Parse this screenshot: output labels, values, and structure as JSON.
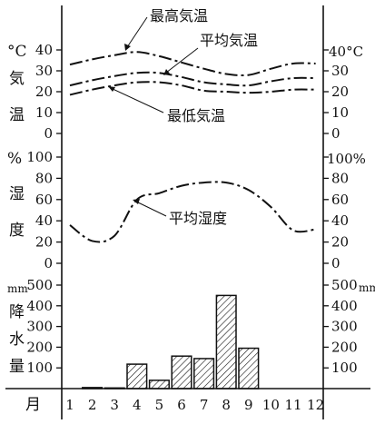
{
  "chart_data": {
    "type": "line",
    "months": [
      "1",
      "2",
      "3",
      "4",
      "5",
      "6",
      "7",
      "8",
      "9",
      "10",
      "11",
      "12"
    ],
    "x_axis_title": "月",
    "temperature_panel": {
      "unit_left": "°C",
      "unit_right": "40°C",
      "side_label_chars": [
        "気",
        "温"
      ],
      "ylim": [
        0,
        40
      ],
      "ticks_left": [
        "40",
        "30",
        "20",
        "10",
        "0"
      ],
      "ticks_right": [
        "30",
        "20",
        "10",
        "0"
      ],
      "tick_values": [
        40,
        30,
        20,
        10,
        0
      ],
      "series": [
        {
          "name": "最高気温",
          "values": [
            33,
            35.5,
            37.5,
            39,
            37,
            34,
            31,
            28.5,
            28,
            31,
            33.5,
            33.5
          ]
        },
        {
          "name": "平均気温",
          "values": [
            23,
            25.5,
            27.5,
            29,
            29,
            27,
            24.5,
            23.5,
            23,
            25,
            26.5,
            26.5
          ]
        },
        {
          "name": "最低気温",
          "values": [
            18.5,
            21,
            23,
            24.5,
            24.5,
            23,
            20.5,
            20,
            19.5,
            20,
            21,
            21
          ]
        }
      ],
      "annotations": [
        "最高気温",
        "平均気温",
        "最低気温"
      ]
    },
    "humidity_panel": {
      "unit_left": "%",
      "unit_right": "100%",
      "side_label_chars": [
        "湿",
        "度"
      ],
      "ylim": [
        0,
        100
      ],
      "ticks_left": [
        "100",
        "80",
        "60",
        "40",
        "20",
        "0"
      ],
      "ticks_right": [
        "80",
        "60",
        "40",
        "20",
        "0"
      ],
      "tick_values": [
        100,
        80,
        60,
        40,
        20,
        0
      ],
      "series": [
        {
          "name": "平均湿度",
          "values": [
            36,
            21,
            26,
            60,
            66,
            73,
            76,
            76,
            69,
            53,
            31,
            32
          ]
        }
      ],
      "annotations": [
        "平均湿度"
      ]
    },
    "precipitation_panel": {
      "type": "bar",
      "unit_left": "mm",
      "unit_right": "mm",
      "side_label_chars": [
        "降",
        "水",
        "量"
      ],
      "ylim": [
        0,
        500
      ],
      "ticks_left": [
        "500",
        "400",
        "300",
        "200",
        "100"
      ],
      "ticks_right": [
        "500",
        "400",
        "300",
        "200",
        "100"
      ],
      "tick_values": [
        500,
        400,
        300,
        200,
        100
      ],
      "values": [
        0,
        5,
        3,
        118,
        40,
        157,
        145,
        450,
        195,
        0,
        0,
        0
      ]
    }
  }
}
